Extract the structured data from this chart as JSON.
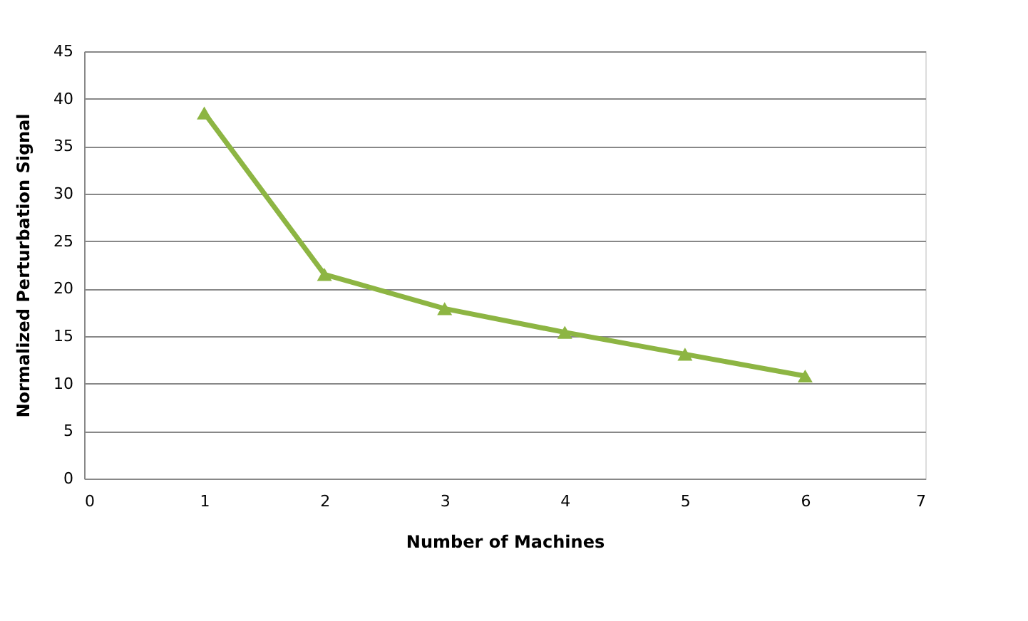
{
  "chart_data": {
    "type": "line",
    "xlabel": "Number of Machines",
    "ylabel": "Normalized Perturbation Signal",
    "x": [
      1,
      2,
      3,
      4,
      5,
      6
    ],
    "series": [
      {
        "color": "#8db543",
        "values": [
          38.5,
          21.5,
          17.9,
          15.4,
          13.1,
          10.8
        ]
      }
    ],
    "xlim": [
      0,
      7
    ],
    "xticks": [
      0,
      1,
      2,
      3,
      4,
      5,
      6,
      7
    ],
    "ylim": [
      0,
      45
    ],
    "yticks": [
      0,
      5,
      10,
      15,
      20,
      25,
      30,
      35,
      40,
      45
    ],
    "grid": "y",
    "marker": "triangle",
    "line_style": "solid"
  }
}
